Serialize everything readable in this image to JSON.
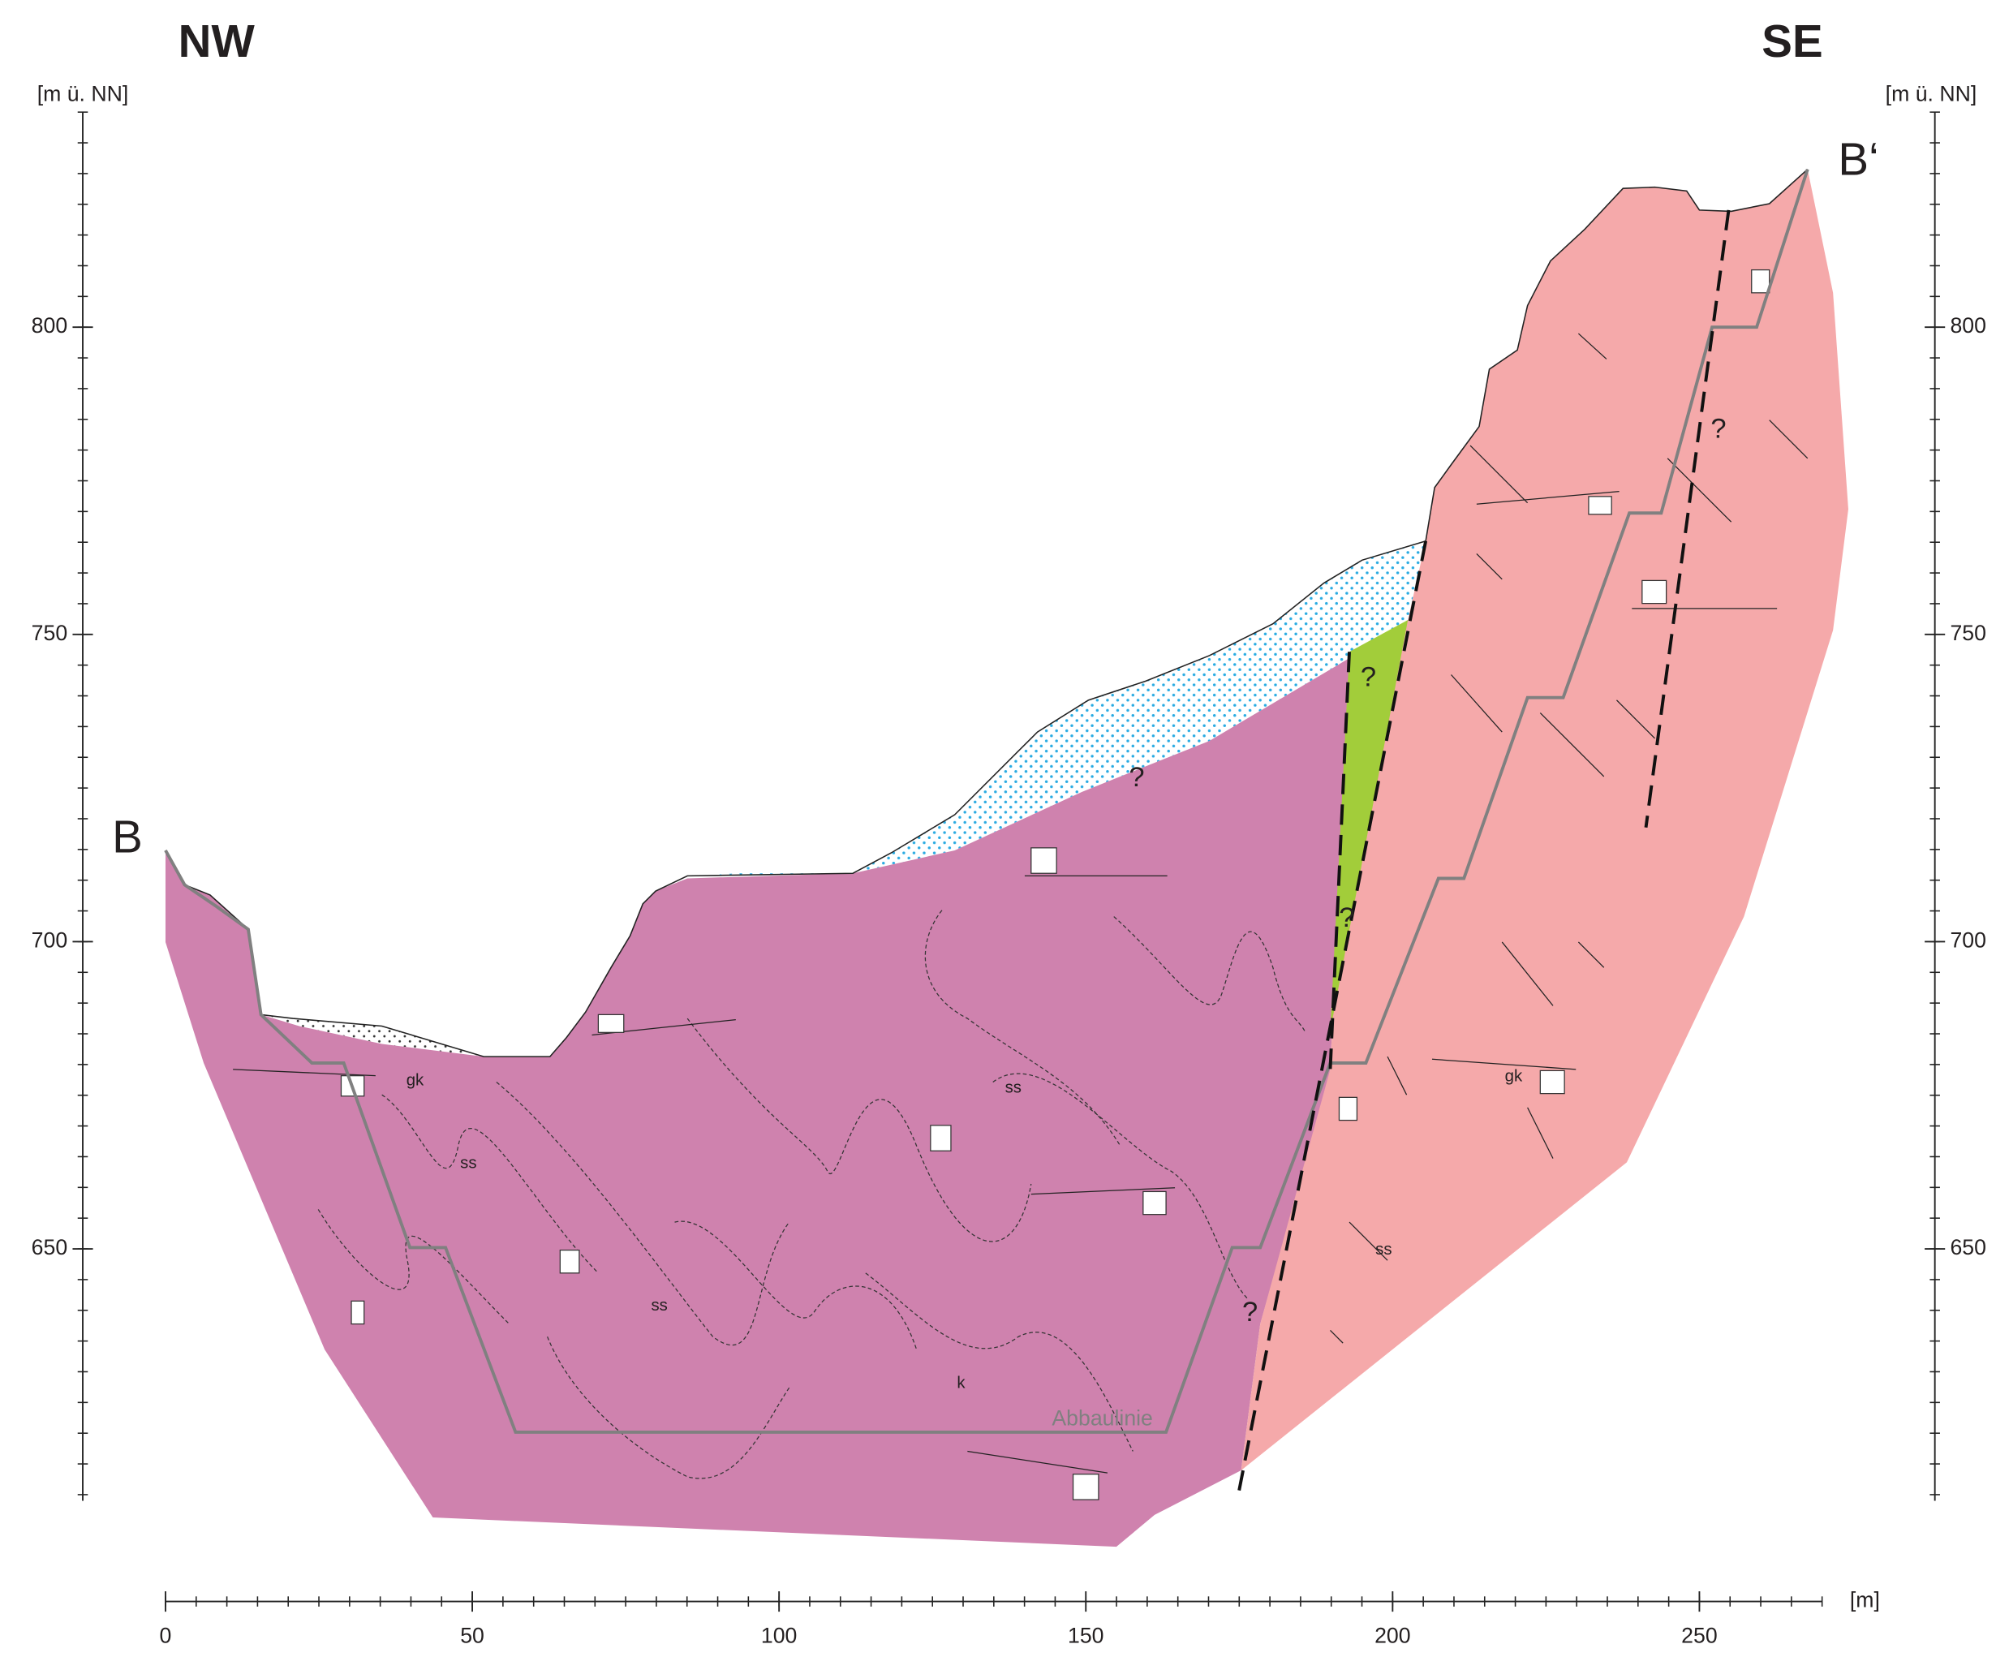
{
  "header": {
    "left": "NW",
    "right": "SE"
  },
  "section": {
    "start": "B",
    "end": "B‘"
  },
  "left_axis": {
    "unit": "[m ü. NN]",
    "ylim": [
      609,
      835
    ],
    "yticks": [
      650,
      700,
      750,
      800
    ]
  },
  "right_axis": {
    "unit": "[m ü. NN]",
    "ylim": [
      609,
      835
    ],
    "yticks": [
      650,
      700,
      750,
      800
    ]
  },
  "x_axis": {
    "unit": "[m]",
    "xlim": [
      0,
      270
    ],
    "xticks": [
      0,
      50,
      100,
      150,
      200,
      250
    ]
  },
  "labels": [
    "?",
    "?",
    "?",
    "?",
    "?",
    "ss",
    "ss",
    "ss",
    "ss",
    "gk",
    "gk",
    "k",
    "Abbaulinie"
  ]
}
